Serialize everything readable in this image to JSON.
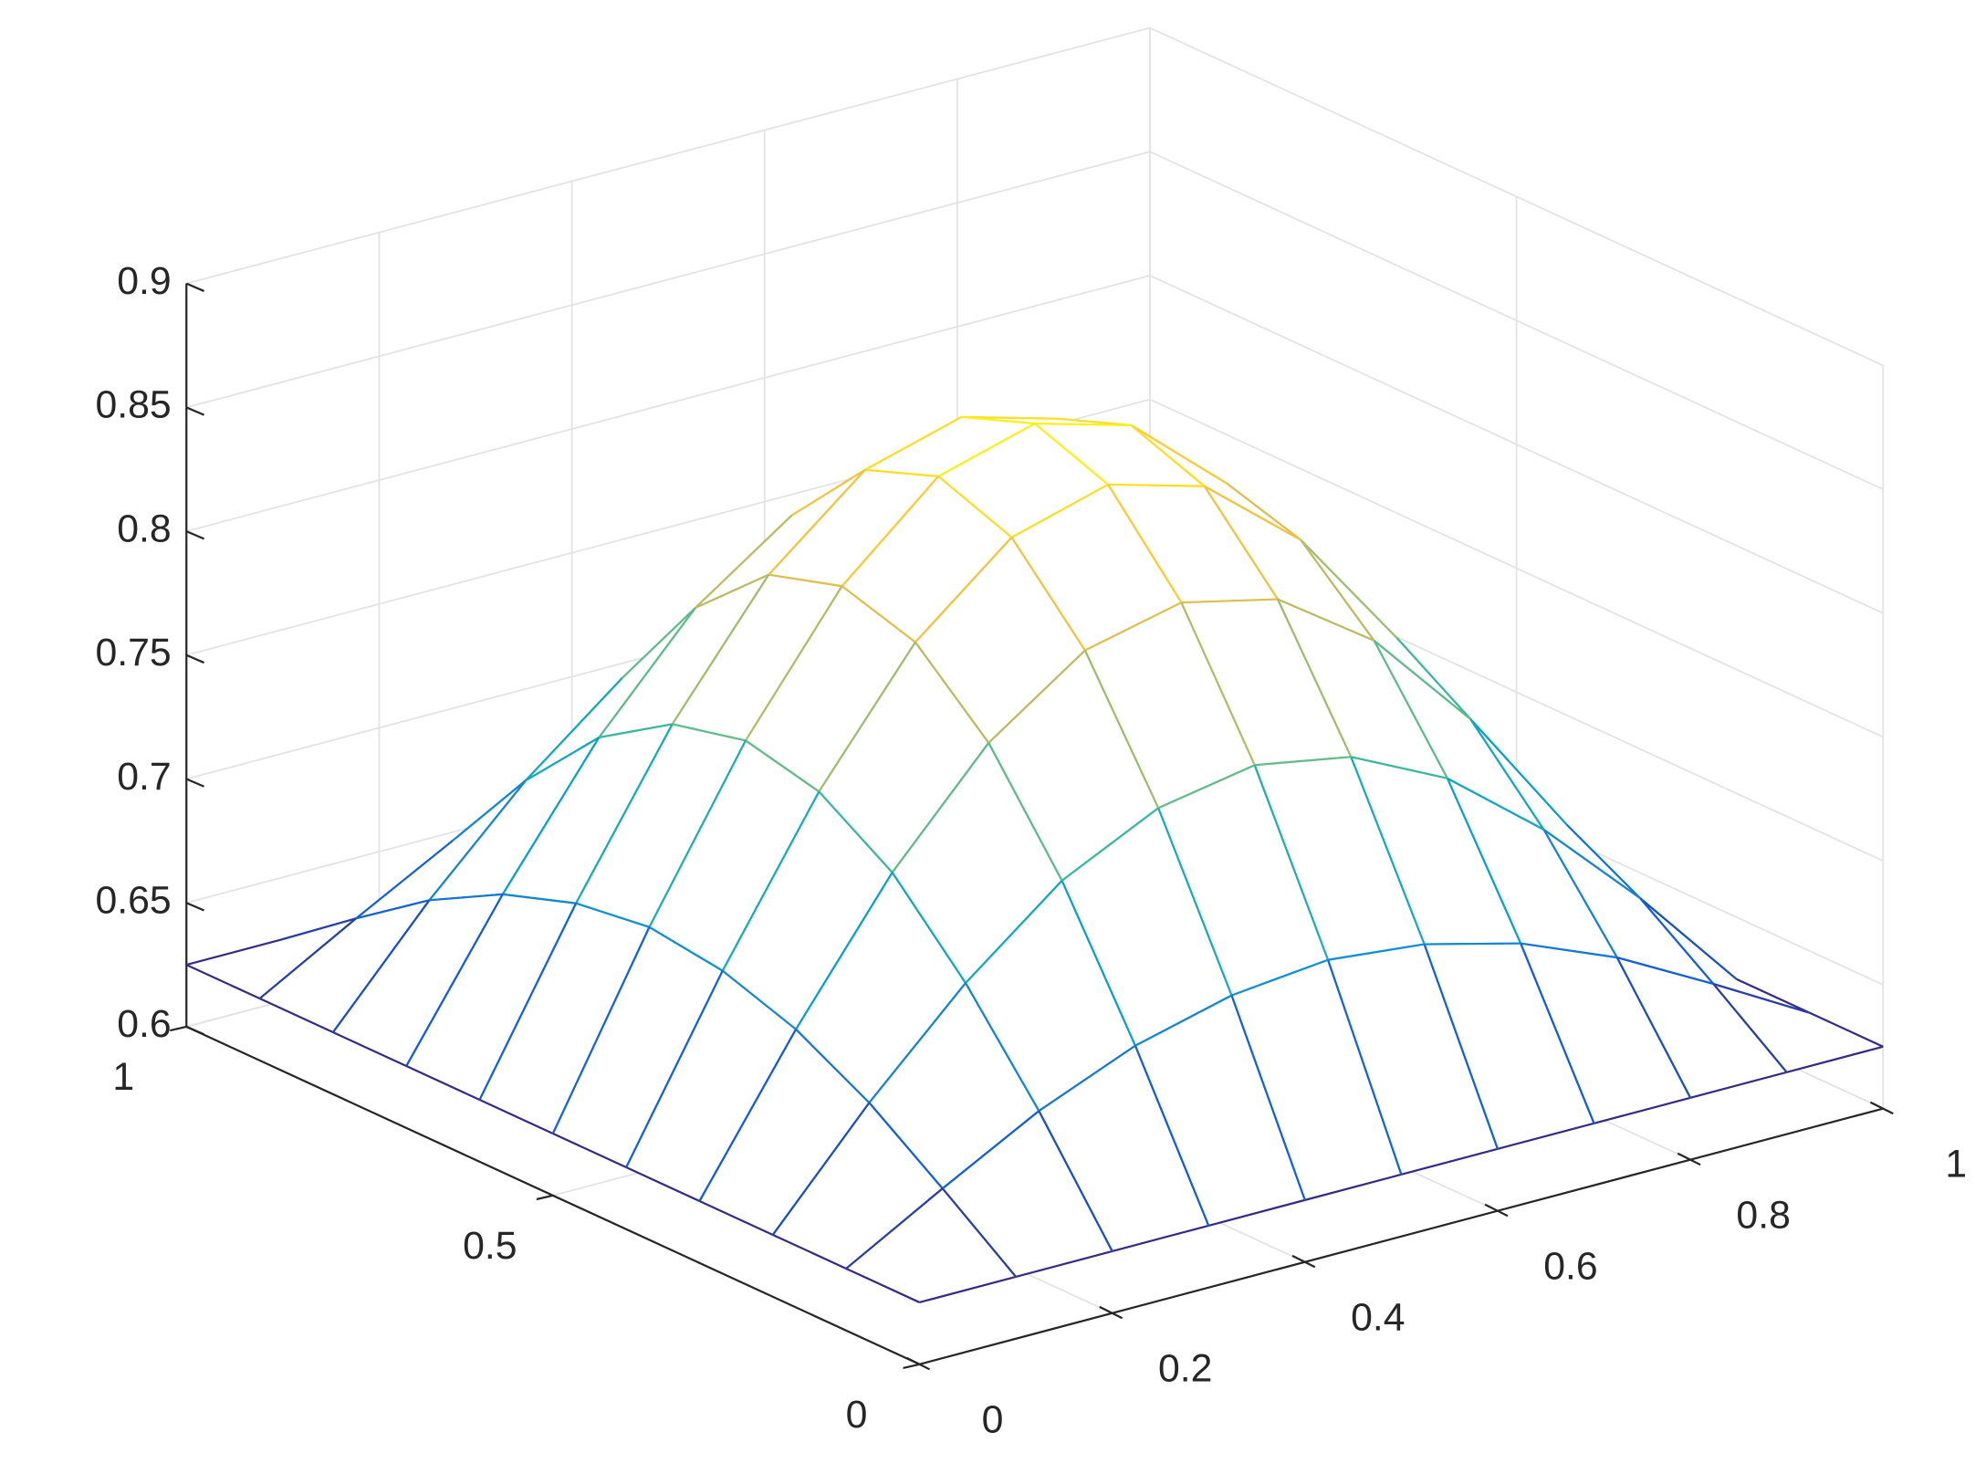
{
  "chart_data": {
    "type": "mesh",
    "x": [
      0,
      0.1,
      0.2,
      0.3,
      0.4,
      0.5,
      0.6,
      0.7,
      0.8,
      0.9,
      1
    ],
    "y": [
      0,
      0.1,
      0.2,
      0.3,
      0.4,
      0.5,
      0.6,
      0.7,
      0.8,
      0.9,
      1
    ],
    "z": [
      [
        0.625,
        0.625,
        0.625,
        0.625,
        0.625,
        0.625,
        0.625,
        0.625,
        0.625,
        0.625,
        0.625
      ],
      [
        0.625,
        0.647,
        0.668,
        0.684,
        0.694,
        0.698,
        0.694,
        0.684,
        0.668,
        0.647,
        0.625
      ],
      [
        0.625,
        0.668,
        0.706,
        0.737,
        0.756,
        0.763,
        0.756,
        0.737,
        0.706,
        0.668,
        0.625
      ],
      [
        0.625,
        0.684,
        0.737,
        0.779,
        0.806,
        0.815,
        0.806,
        0.779,
        0.737,
        0.684,
        0.625
      ],
      [
        0.625,
        0.694,
        0.756,
        0.806,
        0.838,
        0.849,
        0.838,
        0.806,
        0.756,
        0.694,
        0.625
      ],
      [
        0.625,
        0.698,
        0.763,
        0.815,
        0.849,
        0.86,
        0.849,
        0.815,
        0.763,
        0.698,
        0.625
      ],
      [
        0.625,
        0.694,
        0.756,
        0.806,
        0.838,
        0.849,
        0.838,
        0.806,
        0.756,
        0.694,
        0.625
      ],
      [
        0.625,
        0.684,
        0.737,
        0.779,
        0.806,
        0.815,
        0.806,
        0.779,
        0.737,
        0.684,
        0.625
      ],
      [
        0.625,
        0.668,
        0.706,
        0.737,
        0.756,
        0.763,
        0.756,
        0.737,
        0.706,
        0.668,
        0.625
      ],
      [
        0.625,
        0.647,
        0.668,
        0.684,
        0.694,
        0.698,
        0.694,
        0.684,
        0.668,
        0.647,
        0.625
      ],
      [
        0.625,
        0.625,
        0.625,
        0.625,
        0.625,
        0.625,
        0.625,
        0.625,
        0.625,
        0.625,
        0.625
      ]
    ],
    "xlim": [
      0,
      1
    ],
    "ylim": [
      0,
      1
    ],
    "zlim": [
      0.6,
      0.9
    ],
    "xticks": [
      0,
      0.2,
      0.4,
      0.6,
      0.8,
      1
    ],
    "yticks": [
      0,
      0.5,
      1
    ],
    "zticks": [
      0.6,
      0.65,
      0.7,
      0.75,
      0.8,
      0.85,
      0.9
    ],
    "grid": true,
    "colormap": [
      "#352a87",
      "#0f5cdd",
      "#1481d6",
      "#06a4ca",
      "#2eb7a4",
      "#87bf77",
      "#d1bb59",
      "#fec832",
      "#f9fb0e"
    ]
  }
}
